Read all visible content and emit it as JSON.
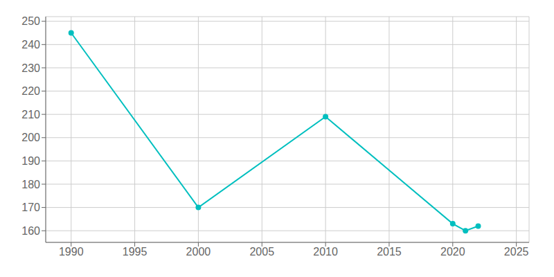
{
  "chart_data": {
    "type": "line",
    "x": [
      1990,
      2000,
      2010,
      2020,
      2021,
      2022
    ],
    "values": [
      245,
      170,
      209,
      163,
      160,
      162
    ],
    "color": "#00BFBF",
    "marker": "circle",
    "xlim": [
      1988,
      2026
    ],
    "ylim": [
      155,
      252
    ],
    "xticks": [
      1990,
      1995,
      2000,
      2005,
      2010,
      2015,
      2020,
      2025
    ],
    "yticks": [
      160,
      170,
      180,
      190,
      200,
      210,
      220,
      230,
      240,
      250
    ],
    "grid": true
  }
}
